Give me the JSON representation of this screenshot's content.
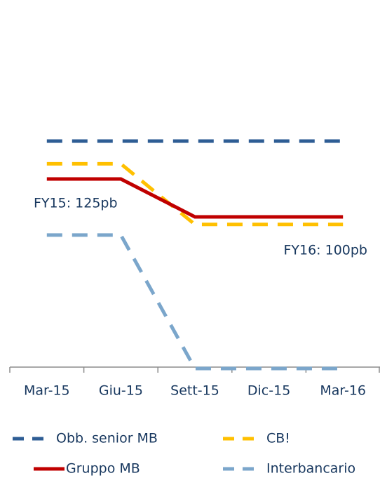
{
  "chart_data": {
    "type": "line",
    "categories": [
      "Mar-15",
      "Giu-15",
      "Sett-15",
      "Dic-15",
      "Mar-16"
    ],
    "series": [
      {
        "name": "Obb. senior MB",
        "color": "#2e5d94",
        "style": "dashed",
        "values": [
          150,
          150,
          150,
          150,
          150
        ]
      },
      {
        "name": "CB!",
        "color": "#ffc000",
        "style": "dashed",
        "values": [
          135,
          135,
          95,
          95,
          95
        ]
      },
      {
        "name": "Gruppo MB",
        "color": "#c00000",
        "style": "solid",
        "values": [
          125,
          125,
          100,
          100,
          100
        ]
      },
      {
        "name": "Interbancario",
        "color": "#7ba6cb",
        "style": "dashed",
        "values": [
          88,
          88,
          0,
          0,
          0
        ]
      }
    ],
    "ylim": [
      0,
      240
    ],
    "annotations": [
      "FY15: 125pb",
      "FY16: 100pb"
    ]
  }
}
